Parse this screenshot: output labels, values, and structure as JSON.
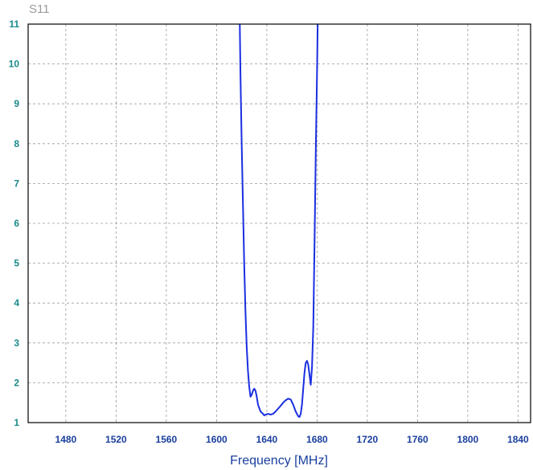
{
  "chart_data": {
    "type": "line",
    "title": "S11",
    "xlabel": "Frequency [MHz]",
    "ylabel": "",
    "xlim": [
      1450,
      1850
    ],
    "ylim": [
      1,
      11
    ],
    "xticks": [
      1480,
      1520,
      1560,
      1600,
      1640,
      1680,
      1720,
      1760,
      1800,
      1840
    ],
    "yticks": [
      1,
      2,
      3,
      4,
      5,
      6,
      7,
      8,
      9,
      10,
      11
    ],
    "grid": true,
    "colors": {
      "line": "#1a2fe0",
      "ytick": "#1a8a8a",
      "xtick": "#1a3f9e",
      "title": "#9a9a9a",
      "xlabel": "#1a3f9e",
      "grid": "#9a9a9a"
    },
    "series": [
      {
        "x": [
          1618.5,
          1619.0,
          1620.0,
          1621.0,
          1622.0,
          1623.0,
          1624.0,
          1625.0,
          1626.0,
          1627.0,
          1628.0,
          1629.0,
          1630.0,
          1631.0,
          1632.0,
          1633.0,
          1635.0,
          1637.0,
          1638.0,
          1639.0,
          1641.0,
          1643.0,
          1645.0,
          1647.0,
          1649.0,
          1651.0,
          1653.0,
          1655.0,
          1657.0,
          1659.0,
          1661.0,
          1663.0,
          1665.0,
          1666.0,
          1667.0,
          1668.0,
          1669.0,
          1670.0,
          1671.0,
          1672.0,
          1673.0,
          1674.0,
          1675.0,
          1676.0,
          1677.0,
          1678.0,
          1679.0,
          1680.0,
          1680.5
        ],
        "values": [
          11.0,
          9.8,
          8.0,
          6.5,
          5.0,
          3.8,
          2.9,
          2.3,
          1.9,
          1.65,
          1.7,
          1.8,
          1.85,
          1.8,
          1.65,
          1.45,
          1.28,
          1.22,
          1.18,
          1.2,
          1.22,
          1.2,
          1.22,
          1.28,
          1.35,
          1.42,
          1.5,
          1.56,
          1.6,
          1.58,
          1.45,
          1.28,
          1.16,
          1.14,
          1.22,
          1.45,
          1.85,
          2.25,
          2.5,
          2.55,
          2.45,
          2.2,
          1.95,
          2.4,
          3.4,
          5.5,
          7.8,
          9.8,
          11.0
        ]
      }
    ]
  }
}
